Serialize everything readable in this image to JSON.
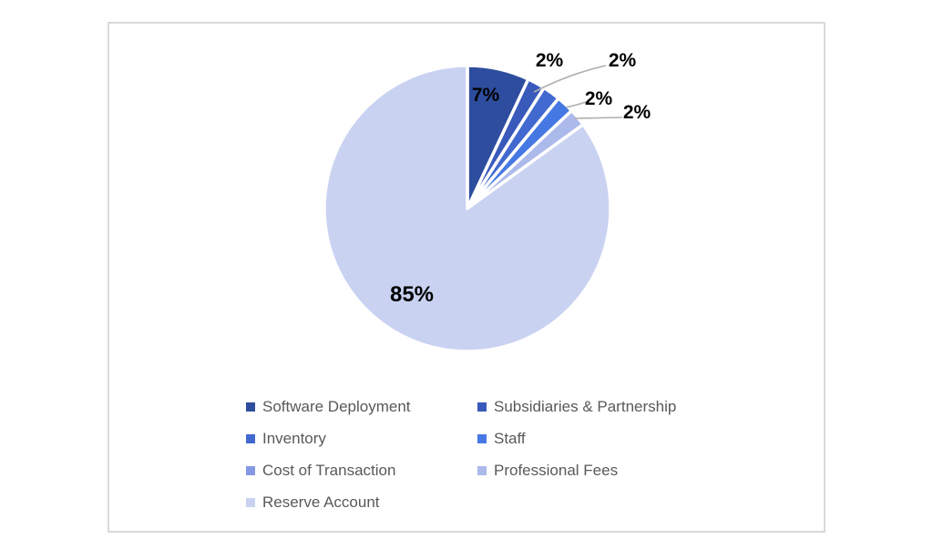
{
  "chart_data": {
    "type": "pie",
    "title": "",
    "start_angle_deg": 0,
    "direction": "clockwise",
    "slices": [
      {
        "label": "Software Deployment",
        "pct": 7,
        "value_label": "7%",
        "color": "#2E4D9E"
      },
      {
        "label": "Subsidiaries & Partnership",
        "pct": 2,
        "value_label": "2%",
        "color": "#3959BB"
      },
      {
        "label": "Inventory",
        "pct": 2,
        "value_label": "2%",
        "color": "#4169CF"
      },
      {
        "label": "Staff",
        "pct": 2,
        "value_label": "2%",
        "color": "#4678E3"
      },
      {
        "label": "Professional Fees",
        "pct": 2,
        "value_label": "2%",
        "color": "#ABB9EB"
      },
      {
        "label": "Reserve Account",
        "pct": 85,
        "value_label": "85%",
        "color": "#C9D2F1"
      }
    ],
    "legend": {
      "position": "bottom",
      "columns": 2,
      "text_color": "#595959",
      "items": [
        {
          "label": "Software Deployment",
          "color": "#2E4D9E"
        },
        {
          "label": "Subsidiaries & Partnership",
          "color": "#3959BB"
        },
        {
          "label": "Inventory",
          "color": "#4169CF"
        },
        {
          "label": "Staff",
          "color": "#4678E3"
        },
        {
          "label": "Cost of Transaction",
          "color": "#8598E6"
        },
        {
          "label": "Professional Fees",
          "color": "#ABB9EB"
        },
        {
          "label": "Reserve Account",
          "color": "#C9D2F1"
        }
      ]
    }
  },
  "ui": {
    "frame_border_color": "#D9D9D9",
    "background_color": "#FFFFFF",
    "leader_line_color": "#AFAFAF",
    "data_label_color": "#000000"
  }
}
